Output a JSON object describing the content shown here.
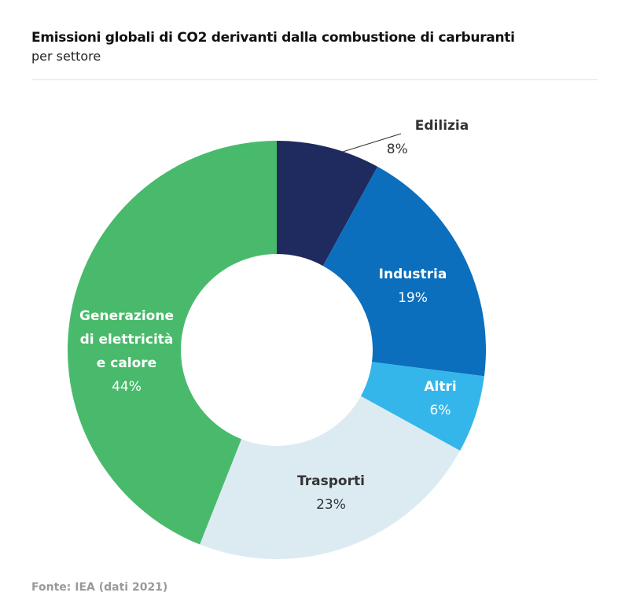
{
  "chart_data": {
    "type": "pie",
    "style": "donut",
    "title": "Emissioni globali di CO2 derivanti dalla combustione di carburanti",
    "subtitle": "per settore",
    "slices": [
      {
        "label": "Edilizia",
        "value": 8,
        "value_label": "8%",
        "color": "#1f2a5e"
      },
      {
        "label": "Industria",
        "value": 19,
        "value_label": "19%",
        "color": "#0b6fbd"
      },
      {
        "label": "Altri",
        "value": 6,
        "value_label": "6%",
        "color": "#35b6ea"
      },
      {
        "label": "Trasporti",
        "value": 23,
        "value_label": "23%",
        "color": "#dcebf2"
      },
      {
        "label": "Generazione di elettricità e calore",
        "label_lines": [
          "Generazione",
          "di elettricità",
          "e calore"
        ],
        "value": 44,
        "value_label": "44%",
        "color": "#49ba6b"
      }
    ],
    "source": "Fonte: IEA (dati 2021)"
  }
}
